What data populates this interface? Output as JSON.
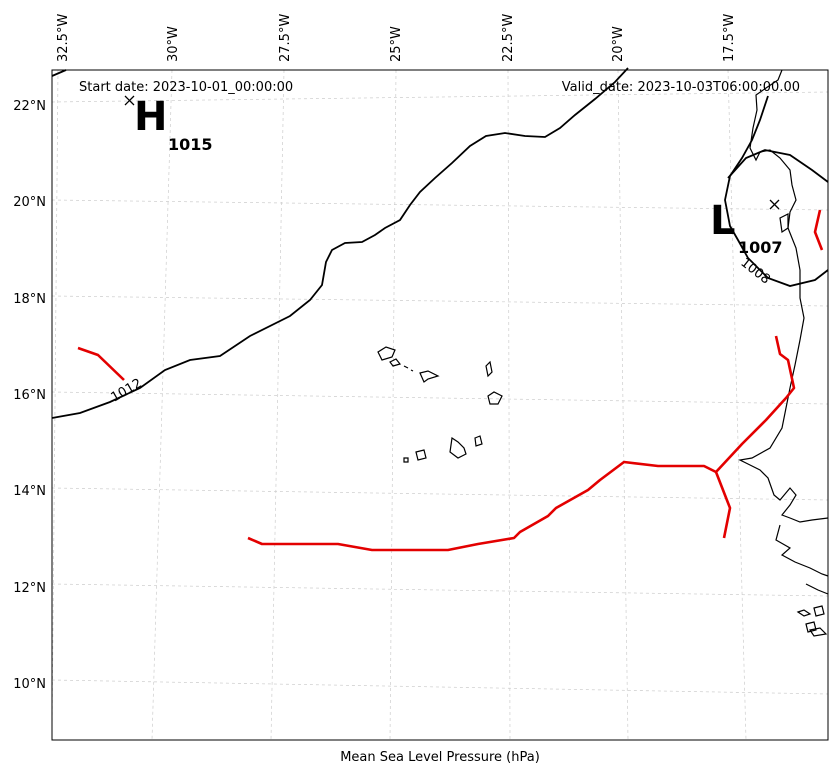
{
  "header": {
    "start_date": "Start date: 2023-10-01_00:00:00",
    "valid_date": "Valid_date: 2023-10-03T06:00:00.00"
  },
  "footer": {
    "title": "Mean Sea Level Pressure (hPa)"
  },
  "axes": {
    "lon_labels": [
      "32.5°W",
      "30°W",
      "27.5°W",
      "25°W",
      "22.5°W",
      "20°W",
      "17.5°W"
    ],
    "lat_labels": [
      "22°N",
      "20°N",
      "18°N",
      "16°N",
      "14°N",
      "12°N",
      "10°N"
    ]
  },
  "pressure_centers": {
    "high": {
      "letter": "H",
      "value": "1015",
      "marker": "x-icon"
    },
    "low": {
      "letter": "L",
      "value": "1007",
      "marker": "x-icon"
    }
  },
  "contour_labels": {
    "c1012": "1012",
    "c1008": "1008"
  },
  "colors": {
    "isobar": "#000000",
    "front": "#e30000",
    "grid": "#cccccc"
  }
}
